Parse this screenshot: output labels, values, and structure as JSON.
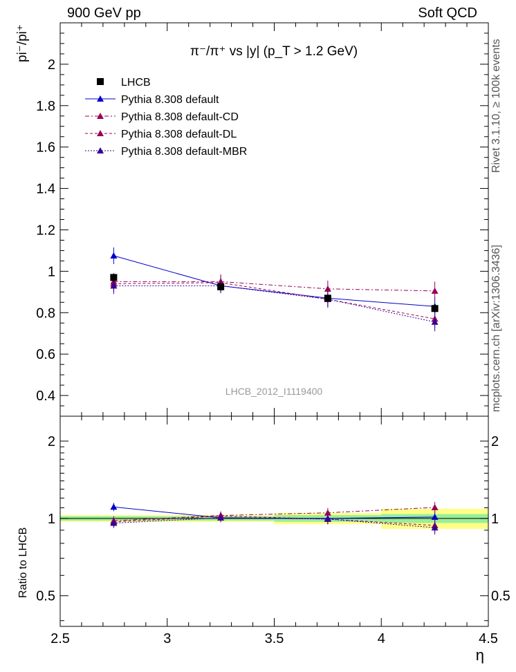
{
  "header": {
    "left": "900 GeV pp",
    "right": "Soft QCD"
  },
  "side_text": {
    "rivet": "Rivet 3.1.10, ≥ 100k events",
    "mcplots": "mcplots.cern.ch [arXiv:1306.3436]"
  },
  "chart_data": {
    "type": "line",
    "title": "π⁻/π⁺ vs |y| (p_T > 1.2 GeV)",
    "ylabel": "pi⁻/pi⁺",
    "xlabel": "η",
    "watermark": "LHCB_2012_I1119400",
    "xlim": [
      2.5,
      4.5
    ],
    "ylim": [
      0.3,
      2.2
    ],
    "x_ticks": [
      2.5,
      3,
      3.5,
      4,
      4.5
    ],
    "x_tick_labels": [
      "2.5",
      "3",
      "3.5",
      "4",
      "4.5"
    ],
    "y_ticks": [
      0.4,
      0.6,
      0.8,
      1,
      1.2,
      1.4,
      1.6,
      1.8,
      2
    ],
    "y_tick_labels": [
      "0.4",
      "0.6",
      "0.8",
      "1",
      "1.2",
      "1.4",
      "1.6",
      "1.8",
      "2"
    ],
    "x": [
      2.75,
      3.25,
      3.75,
      4.25
    ],
    "data": {
      "name": "LHCB",
      "y": [
        0.97,
        0.925,
        0.87,
        0.82
      ],
      "err": [
        0.02,
        0.02,
        0.02,
        0.02
      ],
      "stat_frac": [
        0.02,
        0.02,
        0.03,
        0.04
      ],
      "tot_frac": [
        0.03,
        0.03,
        0.05,
        0.09
      ],
      "color": "#000000"
    },
    "series": [
      {
        "name": "Pythia 8.308 default",
        "y": [
          1.075,
          0.93,
          0.87,
          0.83
        ],
        "err": [
          0.04,
          0.035,
          0.04,
          0.045
        ],
        "color": "#0000cc",
        "dash": ""
      },
      {
        "name": "Pythia 8.308 default-CD",
        "y": [
          0.95,
          0.95,
          0.915,
          0.905
        ],
        "err": [
          0.04,
          0.035,
          0.04,
          0.045
        ],
        "color": "#990055",
        "dash": "6,3,2,3"
      },
      {
        "name": "Pythia 8.308 default-DL",
        "y": [
          0.94,
          0.945,
          0.865,
          0.77
        ],
        "err": [
          0.04,
          0.035,
          0.04,
          0.045
        ],
        "color": "#990055",
        "dash": "4,3"
      },
      {
        "name": "Pythia 8.308 default-MBR",
        "y": [
          0.93,
          0.93,
          0.865,
          0.755
        ],
        "err": [
          0.04,
          0.035,
          0.04,
          0.045
        ],
        "color": "#330099",
        "dash": "2,2"
      }
    ],
    "ratio": {
      "ylabel": "Ratio to LHCB",
      "ylim": [
        0.38,
        2.5
      ],
      "y_ticks": [
        0.5,
        1,
        2
      ],
      "y_tick_labels": [
        "0.5",
        "1",
        "2"
      ]
    }
  }
}
